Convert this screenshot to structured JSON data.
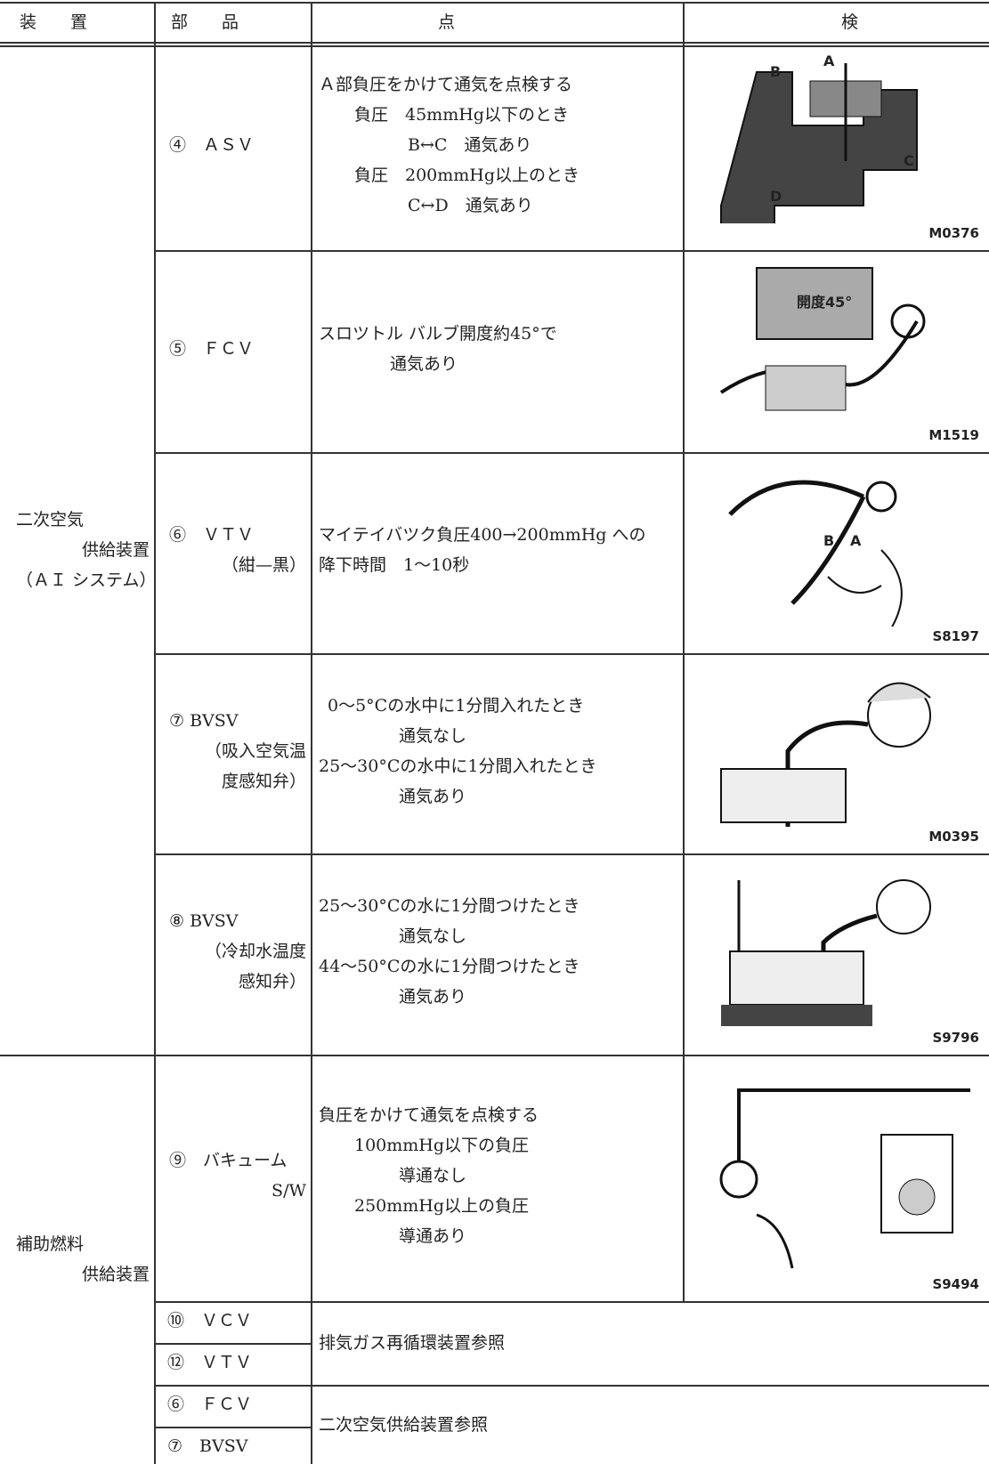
{
  "header": {
    "device": "装　　置",
    "part": "部　　品",
    "inspection": [
      "点",
      "検"
    ]
  },
  "groups": [
    {
      "device": [
        "二次空気",
        "供給装置",
        "（ＡＩ システム）"
      ],
      "rows": [
        {
          "part": [
            "④　ＡＳＶ"
          ],
          "check": [
            "Ａ部負圧をかけて通気を点検する",
            "負圧　45mmHg以下のとき",
            "B↔C　通気あり",
            "負圧　200mmHg以上のとき",
            "C↔D　通気あり"
          ],
          "figure": {
            "code": "M0376",
            "labels": [
              "A",
              "B",
              "C",
              "D"
            ]
          }
        },
        {
          "part": [
            "⑤　ＦＣＶ"
          ],
          "check": [
            "スロツトル バルブ開度約45°で",
            "通気あり"
          ],
          "figure": {
            "code": "M1519",
            "labels": [
              "開度45°"
            ]
          }
        },
        {
          "part": [
            "⑥　ＶＴＶ",
            "（紺—黒）"
          ],
          "check": [
            "マイテイバツク負圧400→200mmHg への",
            "降下時間　1～10秒"
          ],
          "figure": {
            "code": "S8197",
            "labels": [
              "B",
              "A"
            ]
          }
        },
        {
          "part": [
            "⑦ BVSV",
            "（吸入空気温",
            "度感知弁）"
          ],
          "check": [
            "0～5°Cの水中に1分間入れたとき",
            "通気なし",
            "25～30°Cの水中に1分間入れたとき",
            "通気あり"
          ],
          "figure": {
            "code": "M0395",
            "labels": []
          }
        },
        {
          "part": [
            "⑧ BVSV",
            "（冷却水温度",
            "感知弁）"
          ],
          "check": [
            "25～30°Cの水に1分間つけたとき",
            "通気なし",
            "44～50°Cの水に1分間つけたとき",
            "通気あり"
          ],
          "figure": {
            "code": "S9796",
            "labels": []
          }
        }
      ]
    },
    {
      "device": [
        "補助燃料",
        "供給装置"
      ],
      "rows": [
        {
          "part": [
            "⑨　バキューム",
            "S/W"
          ],
          "check": [
            "負圧をかけて通気を点検する",
            "100mmHg以下の負圧",
            "導通なし",
            "250mmHg以上の負圧",
            "導通あり"
          ],
          "figure": {
            "code": "S9494",
            "labels": []
          }
        }
      ],
      "references": [
        {
          "parts": [
            "⑩　ＶＣＶ",
            "⑫　ＶＴＶ"
          ],
          "note": "排気ガス再循環装置参照"
        },
        {
          "parts": [
            "⑥　ＦＣＶ",
            "⑦　BVSV"
          ],
          "note": "二次空気供給装置参照"
        }
      ]
    }
  ]
}
